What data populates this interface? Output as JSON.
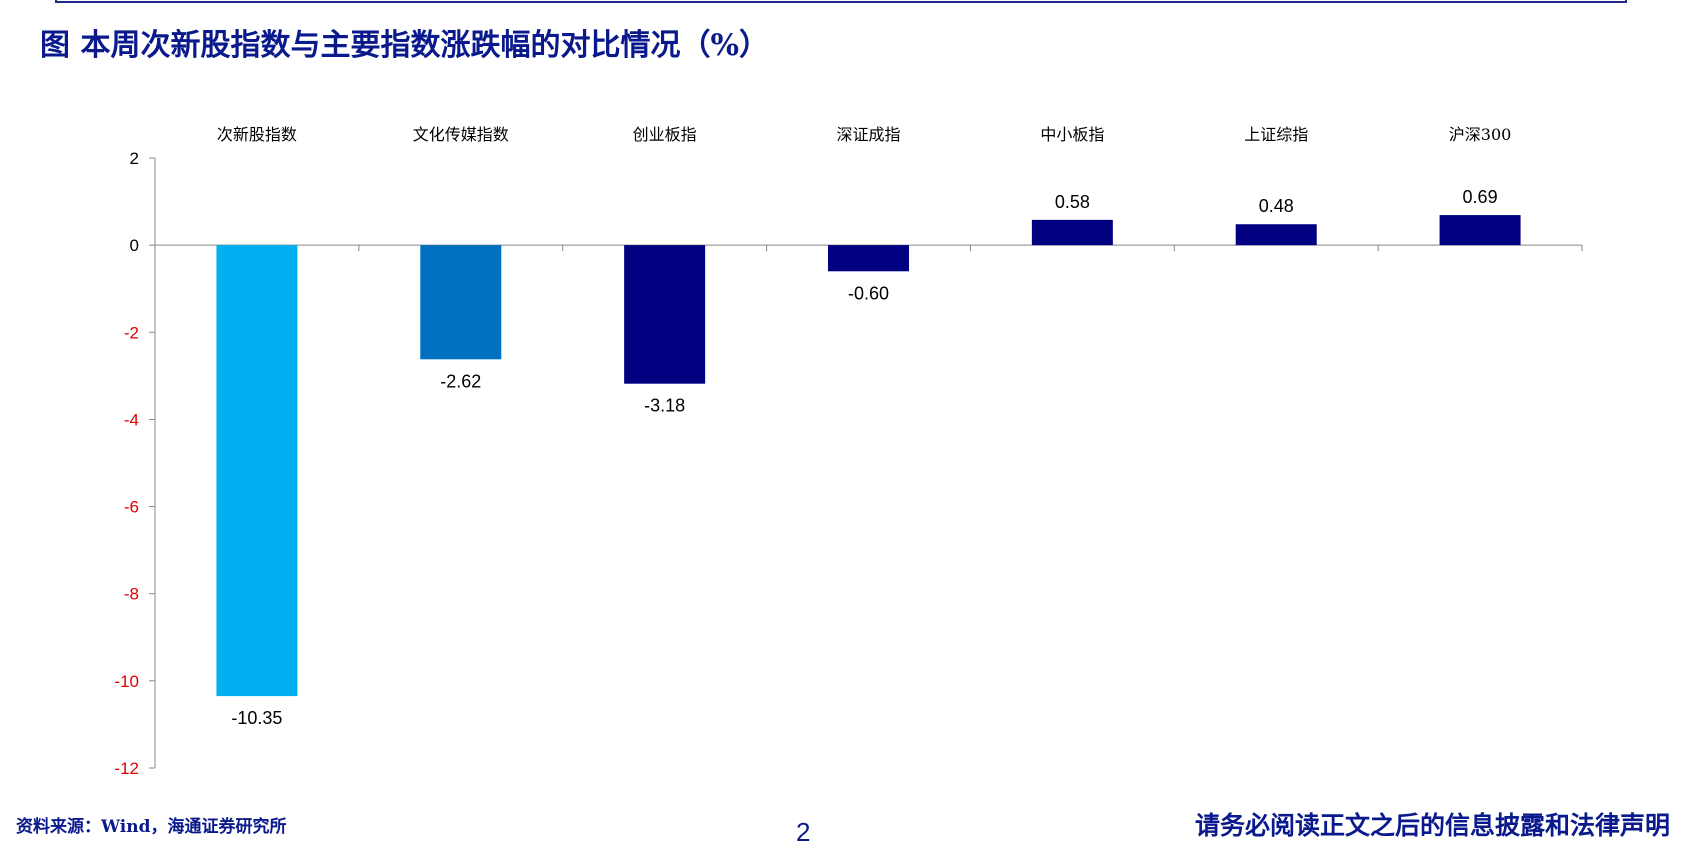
{
  "title": "图 本周次新股指数与主要指数涨跌幅的对比情况（%）",
  "source": "资料来源：Wind，海通证券研究所",
  "page_number": "2",
  "disclaimer": "请务必阅读正文之后的信息披露和法律声明",
  "colors": {
    "title_text": "#0a1a8c",
    "axis": "#888888",
    "negative_tick": "#e00000",
    "positive_tick": "#000000"
  },
  "chart_data": {
    "type": "bar",
    "categories": [
      "次新股指数",
      "文化传媒指数",
      "创业板指",
      "深证成指",
      "中小板指",
      "上证综指",
      "沪深300"
    ],
    "values": [
      -10.35,
      -2.62,
      -3.18,
      -0.6,
      0.58,
      0.48,
      0.69
    ],
    "data_labels": [
      "-10.35",
      "-2.62",
      "-3.18",
      "-0.60",
      "0.58",
      "0.48",
      "0.69"
    ],
    "bar_colors": [
      "#00b0f0",
      "#0070c0",
      "#000080",
      "#000080",
      "#000080",
      "#000080",
      "#000080"
    ],
    "yticks": [
      2,
      0,
      -2,
      -4,
      -6,
      -8,
      -10,
      -12
    ],
    "ylim": [
      -12,
      2
    ],
    "xlabel": "",
    "ylabel": "",
    "category_label_position": "top",
    "legend": "none",
    "grid": false
  }
}
